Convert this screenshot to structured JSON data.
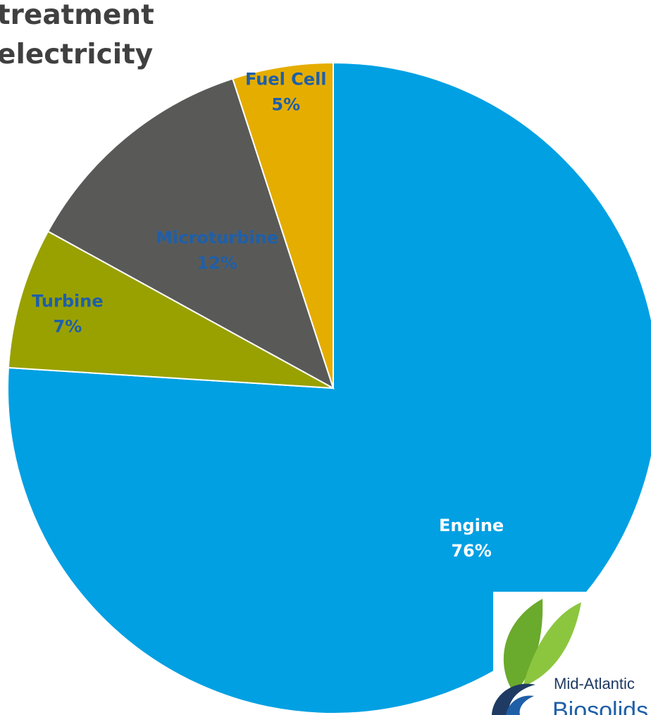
{
  "title_lines": [
    "treatment",
    "electricity"
  ],
  "chart_data": {
    "type": "pie",
    "title": "",
    "slices": [
      {
        "label": "Engine",
        "value": 76,
        "percent_text": "76%",
        "color": "#00a0e3",
        "label_color": "#ffffff"
      },
      {
        "label": "Turbine",
        "value": 7,
        "percent_text": "7%",
        "color": "#99a100",
        "label_color": "#1f5fa8"
      },
      {
        "label": "Microturbine",
        "value": 12,
        "percent_text": "12%",
        "color": "#595a58",
        "label_color": "#1f5fa8"
      },
      {
        "label": "Fuel Cell",
        "value": 5,
        "percent_text": "5%",
        "color": "#e5ad00",
        "label_color": "#1f5fa8"
      }
    ],
    "start_angle_deg": 0,
    "direction": "clockwise",
    "legend": "none"
  },
  "logo": {
    "line1": "Mid-Atlantic",
    "line2": "Biosolids",
    "accent": "#6aaa2c",
    "navy": "#1f3b63"
  }
}
